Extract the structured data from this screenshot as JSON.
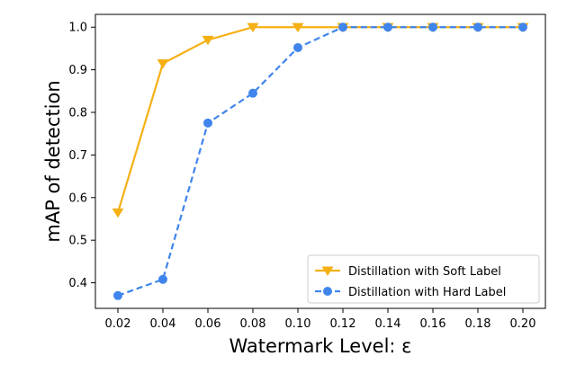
{
  "chart_data": {
    "type": "line",
    "title": "",
    "xlabel": "Watermark Level: ε",
    "ylabel": "mAP of detection",
    "x": [
      0.02,
      0.04,
      0.06,
      0.08,
      0.1,
      0.12,
      0.14,
      0.16,
      0.18,
      0.2
    ],
    "x_tick_labels": [
      "0.02",
      "0.04",
      "0.06",
      "0.08",
      "0.10",
      "0.12",
      "0.14",
      "0.16",
      "0.18",
      "0.20"
    ],
    "y_ticks": [
      0.4,
      0.5,
      0.6,
      0.7,
      0.8,
      0.9,
      1.0
    ],
    "y_tick_labels": [
      "0.4",
      "0.5",
      "0.6",
      "0.7",
      "0.8",
      "0.9",
      "1.0"
    ],
    "xlim": [
      0.01,
      0.21
    ],
    "ylim": [
      0.34,
      1.03
    ],
    "grid": false,
    "legend_position": "lower-right",
    "series": [
      {
        "name": "Distillation with Soft Label",
        "values": [
          0.565,
          0.915,
          0.97,
          1.0,
          1.0,
          1.0,
          1.0,
          1.0,
          1.0,
          1.0
        ],
        "color": "#F5B014",
        "line_style": "solid",
        "marker": "triangle-down"
      },
      {
        "name": "Distillation with Hard Label",
        "values": [
          0.37,
          0.408,
          0.775,
          0.845,
          0.952,
          1.0,
          1.0,
          1.0,
          1.0,
          1.0
        ],
        "color": "#3F85EC",
        "line_style": "dashed",
        "marker": "circle"
      }
    ]
  }
}
